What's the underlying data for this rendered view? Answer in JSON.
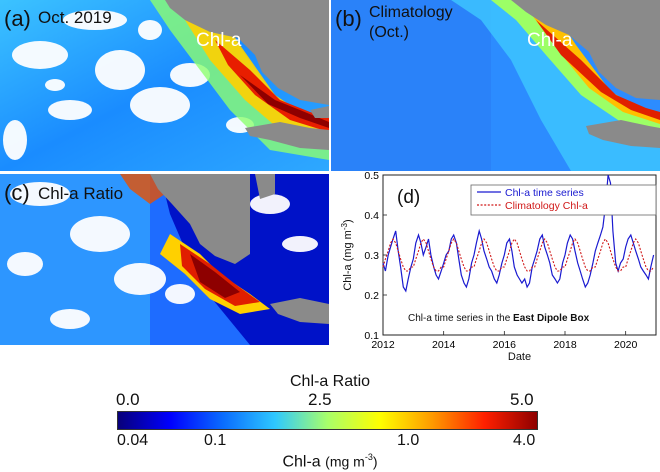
{
  "panels": {
    "a": {
      "letter": "(a)",
      "title": "Oct. 2019",
      "tag": "Chl-a"
    },
    "b": {
      "letter": "(b)",
      "title_line1": "Climatology",
      "title_line2": "(Oct.)",
      "tag": "Chl-a"
    },
    "c": {
      "letter": "(c)",
      "title": "Chl-a Ratio"
    }
  },
  "colorbar": {
    "top_title": "Chl-a Ratio",
    "top_ticks": [
      "0.0",
      "2.5",
      "5.0"
    ],
    "bottom_ticks": [
      "0.04",
      "0.1",
      "1.0",
      "4.0"
    ],
    "bottom_title": "Chl-a",
    "bottom_units": "(mg m",
    "bottom_units_exp": "-3",
    "bottom_units_close": ")",
    "colors": [
      "#08007a",
      "#0000ff",
      "#0a6cff",
      "#2ec8ff",
      "#a8ff6a",
      "#ffff00",
      "#ff9a00",
      "#ff2000",
      "#8e0000"
    ]
  },
  "chart_data": {
    "type": "line",
    "panel_label": "(d)",
    "title": "",
    "xlabel": "Date",
    "ylabel": "Chl-a  (mg m",
    "ylabel_exp": "-3",
    "ylabel_close": ")",
    "xlim": [
      2012,
      2021
    ],
    "ylim": [
      0.1,
      0.5
    ],
    "xticks": [
      2012,
      2014,
      2016,
      2018,
      2020
    ],
    "yticks": [
      0.1,
      0.2,
      0.3,
      0.4,
      0.5
    ],
    "annotation_prefix": "Chl-a time series in the ",
    "annotation_bold": "East Dipole Box",
    "legend_position": "top-right",
    "series": [
      {
        "name": "Chl-a time series",
        "color": "#1a1ad0",
        "style": "solid",
        "x": [
          2012.0,
          2012.08,
          2012.17,
          2012.25,
          2012.33,
          2012.42,
          2012.5,
          2012.58,
          2012.67,
          2012.75,
          2012.83,
          2012.92,
          2013.0,
          2013.08,
          2013.17,
          2013.25,
          2013.33,
          2013.42,
          2013.5,
          2013.58,
          2013.67,
          2013.75,
          2013.83,
          2013.92,
          2014.0,
          2014.08,
          2014.17,
          2014.25,
          2014.33,
          2014.42,
          2014.5,
          2014.58,
          2014.67,
          2014.75,
          2014.83,
          2014.92,
          2015.0,
          2015.08,
          2015.17,
          2015.25,
          2015.33,
          2015.42,
          2015.5,
          2015.58,
          2015.67,
          2015.75,
          2015.83,
          2015.92,
          2016.0,
          2016.08,
          2016.17,
          2016.25,
          2016.33,
          2016.42,
          2016.5,
          2016.58,
          2016.67,
          2016.75,
          2016.83,
          2016.92,
          2017.0,
          2017.08,
          2017.17,
          2017.25,
          2017.33,
          2017.42,
          2017.5,
          2017.58,
          2017.67,
          2017.75,
          2017.83,
          2017.92,
          2018.0,
          2018.08,
          2018.17,
          2018.25,
          2018.33,
          2018.42,
          2018.5,
          2018.58,
          2018.67,
          2018.75,
          2018.83,
          2018.92,
          2019.0,
          2019.08,
          2019.17,
          2019.25,
          2019.33,
          2019.42,
          2019.5,
          2019.58,
          2019.67,
          2019.75,
          2019.83,
          2019.92,
          2020.0,
          2020.08,
          2020.17,
          2020.25,
          2020.33,
          2020.42,
          2020.5,
          2020.58,
          2020.67,
          2020.75,
          2020.83,
          2020.92
        ],
        "y": [
          0.28,
          0.26,
          0.3,
          0.32,
          0.34,
          0.36,
          0.31,
          0.27,
          0.22,
          0.21,
          0.24,
          0.27,
          0.29,
          0.33,
          0.35,
          0.33,
          0.3,
          0.32,
          0.34,
          0.3,
          0.27,
          0.25,
          0.24,
          0.26,
          0.28,
          0.3,
          0.31,
          0.34,
          0.35,
          0.33,
          0.29,
          0.25,
          0.23,
          0.22,
          0.24,
          0.28,
          0.3,
          0.33,
          0.36,
          0.34,
          0.31,
          0.29,
          0.27,
          0.26,
          0.24,
          0.23,
          0.25,
          0.28,
          0.3,
          0.33,
          0.34,
          0.31,
          0.27,
          0.25,
          0.24,
          0.23,
          0.24,
          0.22,
          0.23,
          0.27,
          0.29,
          0.31,
          0.34,
          0.35,
          0.32,
          0.3,
          0.28,
          0.25,
          0.24,
          0.23,
          0.24,
          0.28,
          0.3,
          0.33,
          0.35,
          0.34,
          0.31,
          0.28,
          0.26,
          0.24,
          0.22,
          0.23,
          0.25,
          0.28,
          0.31,
          0.33,
          0.35,
          0.37,
          0.42,
          0.5,
          0.48,
          0.36,
          0.28,
          0.26,
          0.28,
          0.29,
          0.32,
          0.34,
          0.35,
          0.33,
          0.31,
          0.29,
          0.27,
          0.26,
          0.25,
          0.24,
          0.27,
          0.3
        ]
      },
      {
        "name": "Climatology Chl-a",
        "color": "#d01818",
        "style": "dotted",
        "x": [
          2012.0,
          2012.08,
          2012.17,
          2012.25,
          2012.33,
          2012.42,
          2012.5,
          2012.58,
          2012.67,
          2012.75,
          2012.83,
          2012.92,
          2013.0,
          2013.08,
          2013.17,
          2013.25,
          2013.33,
          2013.42,
          2013.5,
          2013.58,
          2013.67,
          2013.75,
          2013.83,
          2013.92,
          2014.0,
          2014.08,
          2014.17,
          2014.25,
          2014.33,
          2014.42,
          2014.5,
          2014.58,
          2014.67,
          2014.75,
          2014.83,
          2014.92,
          2015.0,
          2015.08,
          2015.17,
          2015.25,
          2015.33,
          2015.42,
          2015.5,
          2015.58,
          2015.67,
          2015.75,
          2015.83,
          2015.92,
          2016.0,
          2016.08,
          2016.17,
          2016.25,
          2016.33,
          2016.42,
          2016.5,
          2016.58,
          2016.67,
          2016.75,
          2016.83,
          2016.92,
          2017.0,
          2017.08,
          2017.17,
          2017.25,
          2017.33,
          2017.42,
          2017.5,
          2017.58,
          2017.67,
          2017.75,
          2017.83,
          2017.92,
          2018.0,
          2018.08,
          2018.17,
          2018.25,
          2018.33,
          2018.42,
          2018.5,
          2018.58,
          2018.67,
          2018.75,
          2018.83,
          2018.92,
          2019.0,
          2019.08,
          2019.17,
          2019.25,
          2019.33,
          2019.42,
          2019.5,
          2019.58,
          2019.67,
          2019.75,
          2019.83,
          2019.92,
          2020.0,
          2020.08,
          2020.17,
          2020.25,
          2020.33,
          2020.42,
          2020.5,
          2020.58,
          2020.67,
          2020.75,
          2020.83,
          2020.92
        ],
        "y": [
          0.27,
          0.29,
          0.31,
          0.33,
          0.34,
          0.33,
          0.31,
          0.29,
          0.27,
          0.26,
          0.26,
          0.27,
          0.27,
          0.29,
          0.31,
          0.33,
          0.34,
          0.33,
          0.31,
          0.29,
          0.27,
          0.26,
          0.26,
          0.27,
          0.27,
          0.29,
          0.31,
          0.33,
          0.34,
          0.33,
          0.31,
          0.29,
          0.27,
          0.26,
          0.26,
          0.27,
          0.27,
          0.29,
          0.31,
          0.33,
          0.34,
          0.33,
          0.31,
          0.29,
          0.27,
          0.26,
          0.26,
          0.27,
          0.27,
          0.29,
          0.31,
          0.33,
          0.34,
          0.33,
          0.31,
          0.29,
          0.27,
          0.26,
          0.26,
          0.27,
          0.27,
          0.29,
          0.31,
          0.33,
          0.34,
          0.33,
          0.31,
          0.29,
          0.27,
          0.26,
          0.26,
          0.27,
          0.27,
          0.29,
          0.31,
          0.33,
          0.34,
          0.33,
          0.31,
          0.29,
          0.27,
          0.26,
          0.26,
          0.27,
          0.27,
          0.29,
          0.31,
          0.33,
          0.34,
          0.33,
          0.31,
          0.29,
          0.27,
          0.26,
          0.26,
          0.27,
          0.27,
          0.29,
          0.31,
          0.33,
          0.34,
          0.33,
          0.31,
          0.29,
          0.27,
          0.26,
          0.26,
          0.27
        ]
      }
    ]
  }
}
